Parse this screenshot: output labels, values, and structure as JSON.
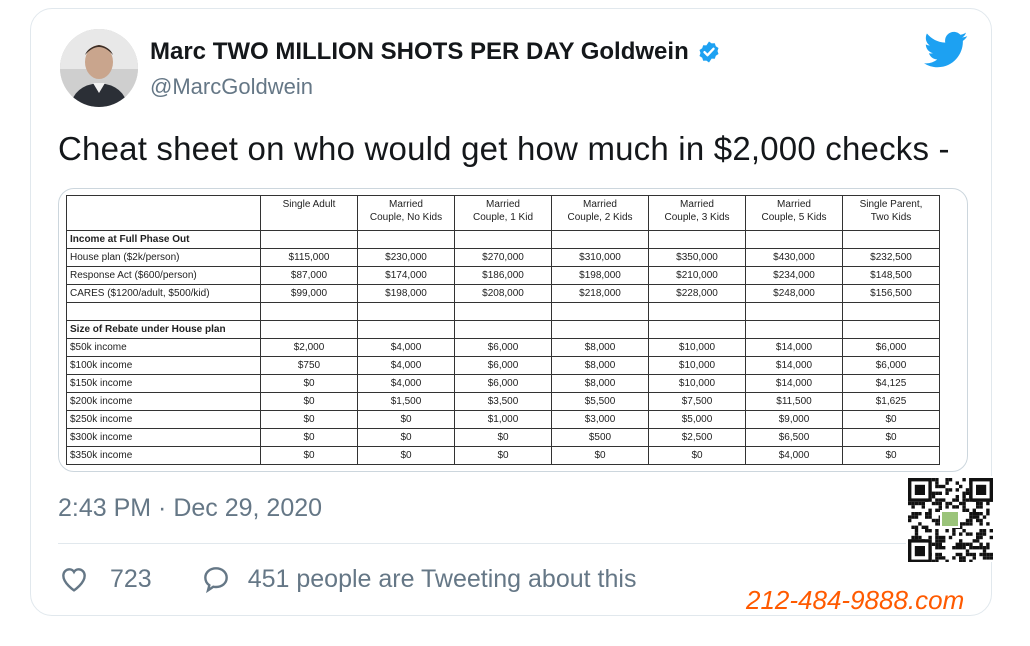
{
  "author": {
    "name": "Marc TWO MILLION SHOTS PER DAY Goldwein",
    "handle": "@MarcGoldwein"
  },
  "tweet": {
    "text": "Cheat sheet on who would get how much in $2,000 checks -",
    "timestamp": "2:43 PM · Dec 29, 2020",
    "likes": "723",
    "tweeting": "451 people are Tweeting about this"
  },
  "sheet": {
    "columns": [
      "",
      "Single Adult",
      "Married\nCouple, No Kids",
      "Married\nCouple, 1 Kid",
      "Married\nCouple, 2 Kids",
      "Married\nCouple, 3 Kids",
      "Married\nCouple, 5 Kids",
      "Single Parent,\nTwo Kids"
    ],
    "section1": "Income at Full Phase Out",
    "rows1": [
      [
        "House plan ($2k/person)",
        "$115,000",
        "$230,000",
        "$270,000",
        "$310,000",
        "$350,000",
        "$430,000",
        "$232,500"
      ],
      [
        "Response Act ($600/person)",
        "$87,000",
        "$174,000",
        "$186,000",
        "$198,000",
        "$210,000",
        "$234,000",
        "$148,500"
      ],
      [
        "CARES ($1200/adult, $500/kid)",
        "$99,000",
        "$198,000",
        "$208,000",
        "$218,000",
        "$228,000",
        "$248,000",
        "$156,500"
      ]
    ],
    "section2": "Size of Rebate under House plan",
    "rows2": [
      [
        "$50k income",
        "$2,000",
        "$4,000",
        "$6,000",
        "$8,000",
        "$10,000",
        "$14,000",
        "$6,000"
      ],
      [
        "$100k income",
        "$750",
        "$4,000",
        "$6,000",
        "$8,000",
        "$10,000",
        "$14,000",
        "$6,000"
      ],
      [
        "$150k income",
        "$0",
        "$4,000",
        "$6,000",
        "$8,000",
        "$10,000",
        "$14,000",
        "$4,125"
      ],
      [
        "$200k income",
        "$0",
        "$1,500",
        "$3,500",
        "$5,500",
        "$7,500",
        "$11,500",
        "$1,625"
      ],
      [
        "$250k income",
        "$0",
        "$0",
        "$1,000",
        "$3,000",
        "$5,000",
        "$9,000",
        "$0"
      ],
      [
        "$300k income",
        "$0",
        "$0",
        "$0",
        "$500",
        "$2,500",
        "$6,500",
        "$0"
      ],
      [
        "$350k income",
        "$0",
        "$0",
        "$0",
        "$0",
        "$0",
        "$4,000",
        "$0"
      ]
    ]
  },
  "watermark": "212-484-9888.com",
  "colors": {
    "verified": "#1da1f2",
    "twitter_blue": "#1da1f2",
    "muted": "#657786",
    "watermark": "#ff5a00"
  },
  "icons": {
    "verified": "verified-badge-icon",
    "bird": "twitter-bird-icon",
    "like": "heart-icon",
    "reply": "speech-bubble-icon"
  }
}
